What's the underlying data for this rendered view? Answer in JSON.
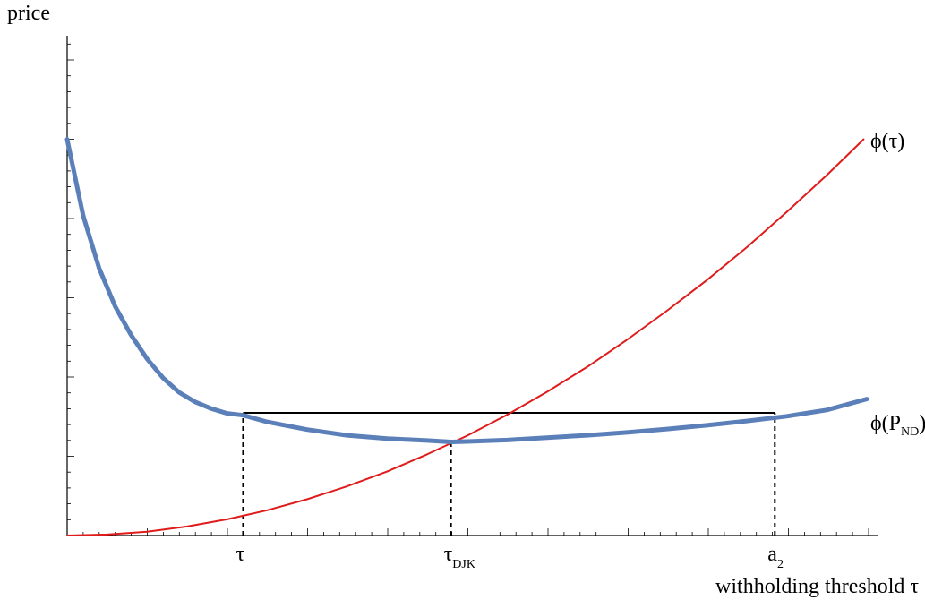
{
  "chart_data": {
    "type": "line",
    "ylabel": "price",
    "xlabel": "withholding threshold τ",
    "xlim": [
      0,
      1
    ],
    "ylim": [
      0,
      1
    ],
    "x_ticks": [
      {
        "x": 0.22,
        "main": "τ",
        "sub": ""
      },
      {
        "x": 0.48,
        "main": "τ",
        "sub": "DJK"
      },
      {
        "x": 0.885,
        "main": "a",
        "sub": "2"
      }
    ],
    "series": [
      {
        "name": "ϕ(τ)",
        "name_main": "ϕ(τ)",
        "name_sub": "",
        "name_tail": "",
        "color": "#e01b1b",
        "x": [
          0,
          0.05,
          0.1,
          0.15,
          0.2,
          0.25,
          0.3,
          0.35,
          0.4,
          0.45,
          0.5,
          0.55,
          0.6,
          0.65,
          0.7,
          0.75,
          0.8,
          0.85,
          0.9,
          0.95,
          0.996
        ],
        "y": [
          0,
          0.002,
          0.008,
          0.019,
          0.034,
          0.053,
          0.076,
          0.103,
          0.134,
          0.17,
          0.209,
          0.253,
          0.301,
          0.353,
          0.41,
          0.471,
          0.535,
          0.604,
          0.678,
          0.755,
          0.83
        ]
      },
      {
        "name": "ϕ(P_ND)",
        "name_main": "ϕ(P",
        "name_sub": "ND",
        "name_tail": ")",
        "color": "#5b80b9",
        "x": [
          0,
          0.02,
          0.04,
          0.06,
          0.08,
          0.1,
          0.12,
          0.14,
          0.16,
          0.18,
          0.2,
          0.22,
          0.25,
          0.3,
          0.35,
          0.4,
          0.45,
          0.48,
          0.5,
          0.55,
          0.6,
          0.65,
          0.7,
          0.75,
          0.8,
          0.85,
          0.9,
          0.95,
          1.0
        ],
        "y": [
          0.83,
          0.67,
          0.56,
          0.48,
          0.42,
          0.37,
          0.33,
          0.3,
          0.28,
          0.266,
          0.256,
          0.252,
          0.238,
          0.222,
          0.21,
          0.203,
          0.199,
          0.196,
          0.197,
          0.2,
          0.205,
          0.21,
          0.216,
          0.223,
          0.231,
          0.24,
          0.25,
          0.263,
          0.286
        ]
      }
    ],
    "annotations": [
      {
        "type": "hline",
        "x0": 0.22,
        "x1": 0.885,
        "y": 0.257
      },
      {
        "type": "vdash",
        "x": 0.22,
        "y0": 0,
        "y1": 0.257
      },
      {
        "type": "vdash",
        "x": 0.48,
        "y0": 0,
        "y1": 0.196
      },
      {
        "type": "vdash",
        "x": 0.885,
        "y0": 0,
        "y1": 0.257
      }
    ],
    "grid": false,
    "legend": "inline at line ends"
  }
}
